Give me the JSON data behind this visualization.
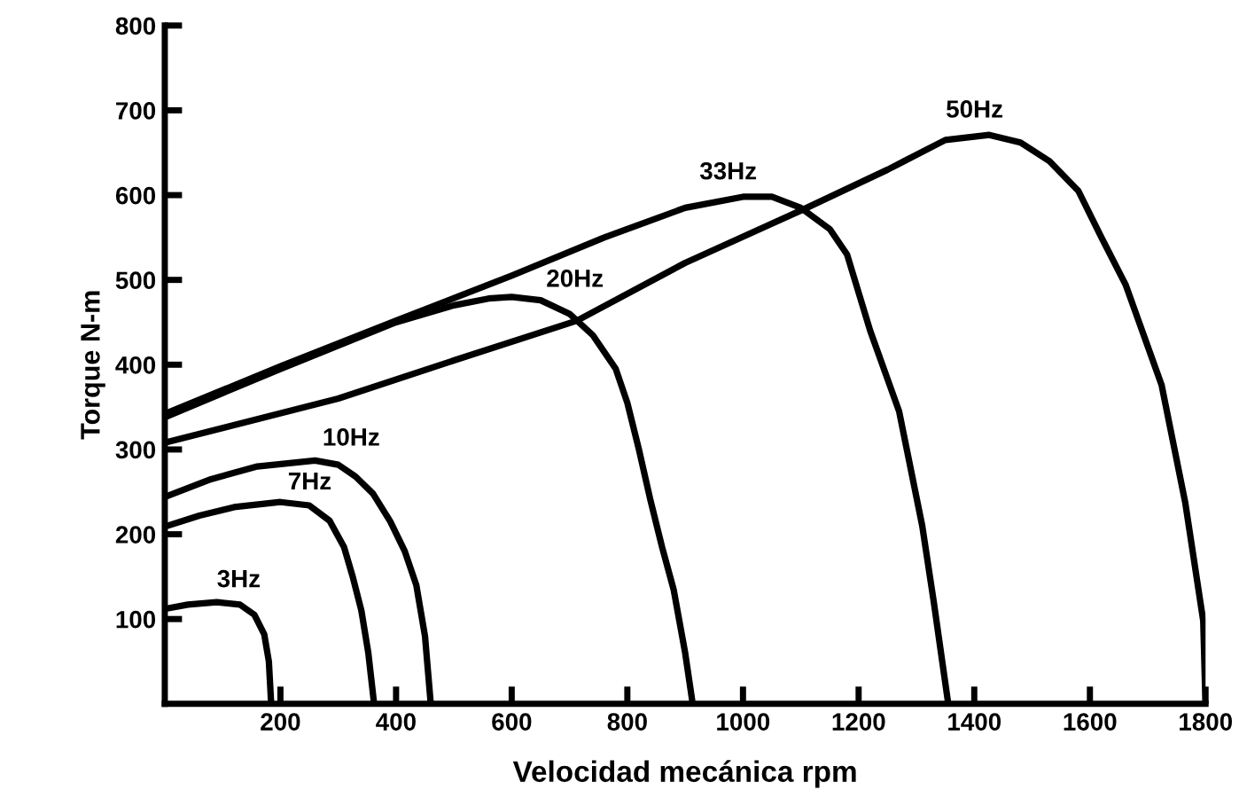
{
  "chart_data": {
    "type": "line",
    "xlabel": "Velocidad mecánica rpm",
    "ylabel": "Torque N-m",
    "xlim": [
      0,
      1800
    ],
    "xticks": [
      200,
      400,
      600,
      800,
      1000,
      1200,
      1400,
      1600,
      1800
    ],
    "ylim": [
      0,
      800
    ],
    "yticks": [
      100,
      200,
      300,
      400,
      500,
      600,
      700,
      800
    ],
    "grid": false,
    "legend": false,
    "marker": "none",
    "line_style": "solid",
    "series": [
      {
        "name": "3Hz",
        "color": "#000000",
        "x": [
          0,
          40,
          90,
          130,
          155,
          172,
          180,
          184
        ],
        "values": [
          112,
          117,
          120,
          117,
          105,
          82,
          50,
          0
        ]
      },
      {
        "name": "7Hz",
        "color": "#000000",
        "x": [
          0,
          60,
          120,
          200,
          250,
          285,
          310,
          325,
          340,
          352,
          362
        ],
        "values": [
          209,
          222,
          232,
          238,
          234,
          216,
          185,
          150,
          110,
          60,
          0
        ]
      },
      {
        "name": "10Hz",
        "color": "#000000",
        "x": [
          0,
          80,
          160,
          260,
          300,
          330,
          360,
          390,
          415,
          435,
          450,
          460
        ],
        "values": [
          244,
          265,
          280,
          287,
          282,
          268,
          248,
          215,
          180,
          140,
          80,
          0
        ]
      },
      {
        "name": "20Hz",
        "color": "#000000",
        "x": [
          0,
          200,
          400,
          500,
          560,
          600,
          650,
          700,
          740,
          780,
          800,
          820,
          840,
          860,
          880,
          900,
          913
        ],
        "values": [
          338,
          395,
          450,
          470,
          478,
          480,
          476,
          460,
          435,
          395,
          355,
          300,
          240,
          185,
          135,
          60,
          0
        ]
      },
      {
        "name": "33Hz",
        "color": "#000000",
        "x": [
          0,
          200,
          400,
          600,
          760,
          900,
          1000,
          1050,
          1100,
          1150,
          1180,
          1220,
          1270,
          1310,
          1330,
          1355
        ],
        "values": [
          342,
          398,
          452,
          505,
          550,
          585,
          598,
          598,
          585,
          560,
          530,
          440,
          345,
          210,
          120,
          0
        ]
      },
      {
        "name": "50Hz",
        "color": "#000000",
        "x": [
          0,
          300,
          500,
          713,
          900,
          1107,
          1250,
          1350,
          1426,
          1480,
          1530,
          1580,
          1620,
          1662,
          1724,
          1765,
          1796,
          1800
        ],
        "values": [
          308,
          360,
          405,
          452,
          520,
          584,
          630,
          665,
          671,
          662,
          640,
          605,
          550,
          494,
          376,
          237,
          98,
          0
        ]
      }
    ]
  }
}
